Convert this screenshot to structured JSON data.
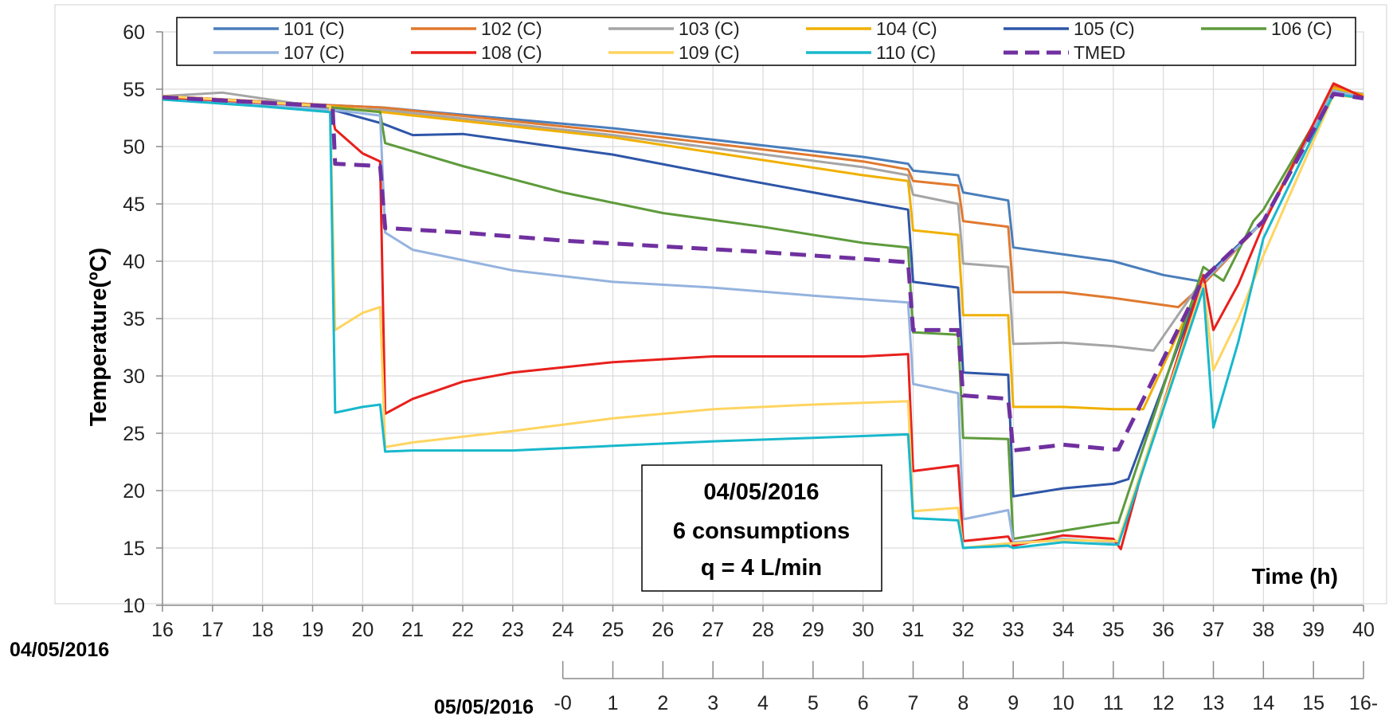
{
  "chart_data": {
    "type": "line",
    "ylabel": "Temperature(ºC)",
    "xlabel": "Time (h)",
    "ylim": [
      10,
      60
    ],
    "yticks": [
      10,
      15,
      20,
      25,
      30,
      35,
      40,
      45,
      50,
      55,
      60
    ],
    "xlim": [
      16,
      40
    ],
    "x_primary_ticks": [
      16,
      17,
      18,
      19,
      20,
      21,
      22,
      23,
      24,
      25,
      26,
      27,
      28,
      29,
      30,
      31,
      32,
      33,
      34,
      35,
      36,
      37,
      38,
      39,
      40
    ],
    "x_primary_date": "04/05/2016",
    "x_secondary_date": "05/05/2016",
    "x_secondary_ticks": [
      {
        "value": 24,
        "label": "-0"
      },
      {
        "value": 25,
        "label": "1"
      },
      {
        "value": 26,
        "label": "2"
      },
      {
        "value": 27,
        "label": "3"
      },
      {
        "value": 28,
        "label": "4"
      },
      {
        "value": 29,
        "label": "5"
      },
      {
        "value": 30,
        "label": "6"
      },
      {
        "value": 31,
        "label": "7"
      },
      {
        "value": 32,
        "label": "8"
      },
      {
        "value": 33,
        "label": "9"
      },
      {
        "value": 34,
        "label": "10"
      },
      {
        "value": 35,
        "label": "11"
      },
      {
        "value": 36,
        "label": "12"
      },
      {
        "value": 37,
        "label": "13"
      },
      {
        "value": 38,
        "label": "14"
      },
      {
        "value": 39,
        "label": "15"
      },
      {
        "value": 40,
        "label": "16-"
      }
    ],
    "grid": true,
    "legend_position": "top",
    "annotation": [
      "04/05/2016",
      "6 consumptions",
      "q = 4 L/min"
    ],
    "series": [
      {
        "name": "101 (C)",
        "color": "#4a7ebb",
        "dash": false,
        "points": [
          [
            16,
            54.4
          ],
          [
            19.4,
            53.6
          ],
          [
            20.4,
            53.4
          ],
          [
            25,
            51.6
          ],
          [
            30,
            49.1
          ],
          [
            30.9,
            48.5
          ],
          [
            31,
            47.9
          ],
          [
            31.9,
            47.5
          ],
          [
            32,
            46.0
          ],
          [
            32.9,
            45.3
          ],
          [
            33,
            41.2
          ],
          [
            35,
            40.0
          ],
          [
            36,
            38.8
          ],
          [
            36.8,
            38.2
          ],
          [
            38,
            43.5
          ],
          [
            39.4,
            54.8
          ],
          [
            40,
            54.3
          ]
        ]
      },
      {
        "name": "102 (C)",
        "color": "#e0792f",
        "dash": false,
        "points": [
          [
            16,
            54.4
          ],
          [
            19.4,
            53.6
          ],
          [
            20.4,
            53.4
          ],
          [
            25,
            51.3
          ],
          [
            30,
            48.7
          ],
          [
            30.9,
            48.0
          ],
          [
            31,
            47.0
          ],
          [
            31.9,
            46.6
          ],
          [
            32,
            43.5
          ],
          [
            32.9,
            43.0
          ],
          [
            33,
            37.3
          ],
          [
            34,
            37.3
          ],
          [
            35,
            36.8
          ],
          [
            36.3,
            36.0
          ],
          [
            36.8,
            38.0
          ],
          [
            38,
            43.5
          ],
          [
            39.4,
            55.3
          ],
          [
            40,
            54.4
          ]
        ]
      },
      {
        "name": "103 (C)",
        "color": "#a5a5a5",
        "dash": false,
        "points": [
          [
            16,
            54.4
          ],
          [
            17.2,
            54.7
          ],
          [
            19.4,
            53.3
          ],
          [
            20.4,
            53.2
          ],
          [
            25,
            51.0
          ],
          [
            30,
            48.2
          ],
          [
            30.9,
            47.5
          ],
          [
            31,
            45.8
          ],
          [
            31.9,
            45.0
          ],
          [
            32,
            39.8
          ],
          [
            32.9,
            39.5
          ],
          [
            33,
            32.8
          ],
          [
            34,
            32.9
          ],
          [
            35,
            32.6
          ],
          [
            35.8,
            32.2
          ],
          [
            36.8,
            38.5
          ],
          [
            38,
            43.5
          ],
          [
            39.4,
            55.0
          ],
          [
            40,
            54.6
          ]
        ]
      },
      {
        "name": "104 (C)",
        "color": "#f0b000",
        "dash": false,
        "points": [
          [
            16,
            54.4
          ],
          [
            19.4,
            53.5
          ],
          [
            20.4,
            53.0
          ],
          [
            25,
            50.8
          ],
          [
            30,
            47.5
          ],
          [
            30.9,
            47.0
          ],
          [
            31,
            42.7
          ],
          [
            31.9,
            42.3
          ],
          [
            32,
            35.3
          ],
          [
            32.9,
            35.3
          ],
          [
            33,
            27.3
          ],
          [
            34,
            27.3
          ],
          [
            35,
            27.1
          ],
          [
            35.6,
            27.1
          ],
          [
            36.8,
            38.5
          ],
          [
            38,
            43.5
          ],
          [
            39.4,
            55.1
          ],
          [
            40,
            54.5
          ]
        ]
      },
      {
        "name": "105 (C)",
        "color": "#2e56a8",
        "dash": false,
        "points": [
          [
            16,
            54.2
          ],
          [
            19.4,
            53.2
          ],
          [
            20.4,
            52.0
          ],
          [
            21,
            51.0
          ],
          [
            22,
            51.1
          ],
          [
            25,
            49.3
          ],
          [
            27.5,
            47.2
          ],
          [
            30,
            45.2
          ],
          [
            30.9,
            44.5
          ],
          [
            31,
            38.2
          ],
          [
            31.9,
            37.7
          ],
          [
            32,
            30.3
          ],
          [
            32.9,
            30.1
          ],
          [
            33,
            19.5
          ],
          [
            34,
            20.2
          ],
          [
            35,
            20.6
          ],
          [
            35.3,
            21.0
          ],
          [
            36.8,
            38.5
          ],
          [
            38,
            43.5
          ],
          [
            39.4,
            54.9
          ],
          [
            40,
            54.2
          ]
        ]
      },
      {
        "name": "106 (C)",
        "color": "#5e9b3c",
        "dash": false,
        "points": [
          [
            16,
            54.3
          ],
          [
            19.4,
            53.4
          ],
          [
            20.35,
            53.0
          ],
          [
            20.45,
            50.3
          ],
          [
            22,
            48.3
          ],
          [
            24,
            46.0
          ],
          [
            26,
            44.2
          ],
          [
            28,
            43.0
          ],
          [
            30,
            41.6
          ],
          [
            30.9,
            41.2
          ],
          [
            31,
            33.8
          ],
          [
            31.9,
            33.6
          ],
          [
            32,
            24.6
          ],
          [
            32.9,
            24.5
          ],
          [
            33,
            15.8
          ],
          [
            34,
            16.5
          ],
          [
            35,
            17.2
          ],
          [
            35.1,
            17.2
          ],
          [
            36.8,
            39.5
          ],
          [
            37.2,
            38.3
          ],
          [
            37.8,
            43.5
          ],
          [
            38,
            44.5
          ],
          [
            39.4,
            54.9
          ],
          [
            40,
            54.2
          ]
        ]
      },
      {
        "name": "107 (C)",
        "color": "#95b3de",
        "dash": false,
        "points": [
          [
            16,
            54.3
          ],
          [
            19.4,
            53.2
          ],
          [
            20.35,
            52.7
          ],
          [
            20.45,
            42.5
          ],
          [
            21,
            41.0
          ],
          [
            23,
            39.2
          ],
          [
            25,
            38.2
          ],
          [
            27,
            37.7
          ],
          [
            29,
            37.0
          ],
          [
            30.9,
            36.4
          ],
          [
            31,
            29.3
          ],
          [
            31.9,
            28.5
          ],
          [
            32,
            17.5
          ],
          [
            32.9,
            18.3
          ],
          [
            33,
            15.5
          ],
          [
            34,
            15.8
          ],
          [
            35,
            15.5
          ],
          [
            35.1,
            15.5
          ],
          [
            36.8,
            38.2
          ],
          [
            38,
            43.5
          ],
          [
            39.4,
            54.9
          ],
          [
            40,
            54.2
          ]
        ]
      },
      {
        "name": "108 (C)",
        "color": "#e8201c",
        "dash": false,
        "points": [
          [
            16,
            54.3
          ],
          [
            19.35,
            53.5
          ],
          [
            19.45,
            51.5
          ],
          [
            20,
            49.4
          ],
          [
            20.35,
            48.7
          ],
          [
            20.45,
            26.7
          ],
          [
            21,
            28.0
          ],
          [
            22,
            29.5
          ],
          [
            23,
            30.3
          ],
          [
            25,
            31.2
          ],
          [
            27,
            31.7
          ],
          [
            30,
            31.7
          ],
          [
            30.9,
            31.9
          ],
          [
            31,
            21.7
          ],
          [
            31.9,
            22.2
          ],
          [
            32,
            15.6
          ],
          [
            32.9,
            16.0
          ],
          [
            33,
            15.2
          ],
          [
            34,
            16.1
          ],
          [
            35,
            15.8
          ],
          [
            35.15,
            14.9
          ],
          [
            35.5,
            20.5
          ],
          [
            36.8,
            38.8
          ],
          [
            37,
            34.0
          ],
          [
            37.5,
            38.0
          ],
          [
            38,
            43.2
          ],
          [
            39.4,
            55.5
          ],
          [
            40,
            54.3
          ]
        ]
      },
      {
        "name": "109 (C)",
        "color": "#ffd460",
        "dash": false,
        "points": [
          [
            16,
            54.4
          ],
          [
            19.35,
            53.5
          ],
          [
            19.45,
            34.0
          ],
          [
            20,
            35.5
          ],
          [
            20.35,
            36.0
          ],
          [
            20.45,
            23.8
          ],
          [
            21,
            24.2
          ],
          [
            23,
            25.2
          ],
          [
            25,
            26.3
          ],
          [
            27,
            27.1
          ],
          [
            29,
            27.5
          ],
          [
            30.9,
            27.8
          ],
          [
            31,
            18.2
          ],
          [
            31.9,
            18.5
          ],
          [
            32,
            15.0
          ],
          [
            32.9,
            15.4
          ],
          [
            33,
            15.4
          ],
          [
            34,
            15.7
          ],
          [
            35,
            15.6
          ],
          [
            35.1,
            15.6
          ],
          [
            36.8,
            38.0
          ],
          [
            37,
            30.5
          ],
          [
            37.5,
            35.0
          ],
          [
            38,
            40.5
          ],
          [
            39.4,
            54.5
          ],
          [
            40,
            54.2
          ]
        ]
      },
      {
        "name": "110 (C)",
        "color": "#18b8cc",
        "dash": false,
        "points": [
          [
            16,
            54.1
          ],
          [
            18,
            53.5
          ],
          [
            19.35,
            53.0
          ],
          [
            19.45,
            26.8
          ],
          [
            20,
            27.3
          ],
          [
            20.35,
            27.5
          ],
          [
            20.45,
            23.4
          ],
          [
            21,
            23.5
          ],
          [
            23,
            23.5
          ],
          [
            25,
            23.9
          ],
          [
            27,
            24.3
          ],
          [
            29,
            24.6
          ],
          [
            30.9,
            24.9
          ],
          [
            31,
            17.6
          ],
          [
            31.9,
            17.4
          ],
          [
            32,
            15.0
          ],
          [
            32.9,
            15.2
          ],
          [
            33,
            15.0
          ],
          [
            34,
            15.5
          ],
          [
            35,
            15.3
          ],
          [
            35.1,
            15.3
          ],
          [
            36.8,
            37.6
          ],
          [
            37,
            25.5
          ],
          [
            37.5,
            33.0
          ],
          [
            38,
            42.0
          ],
          [
            39.4,
            54.6
          ],
          [
            40,
            54.2
          ]
        ]
      },
      {
        "name": "TMED",
        "color": "#7030a0",
        "dash": true,
        "points": [
          [
            16,
            54.3
          ],
          [
            19.4,
            53.5
          ],
          [
            19.45,
            48.5
          ],
          [
            20.35,
            48.3
          ],
          [
            20.45,
            42.9
          ],
          [
            22,
            42.5
          ],
          [
            24,
            41.8
          ],
          [
            26,
            41.3
          ],
          [
            28,
            40.8
          ],
          [
            30,
            40.2
          ],
          [
            30.9,
            39.9
          ],
          [
            31,
            34.0
          ],
          [
            31.9,
            34.0
          ],
          [
            32,
            28.3
          ],
          [
            32.9,
            28.0
          ],
          [
            33,
            23.5
          ],
          [
            34,
            24.0
          ],
          [
            35,
            23.6
          ],
          [
            35.1,
            23.6
          ],
          [
            36.8,
            38.5
          ],
          [
            38,
            43.5
          ],
          [
            39.4,
            54.6
          ],
          [
            40,
            54.2
          ]
        ]
      }
    ]
  }
}
